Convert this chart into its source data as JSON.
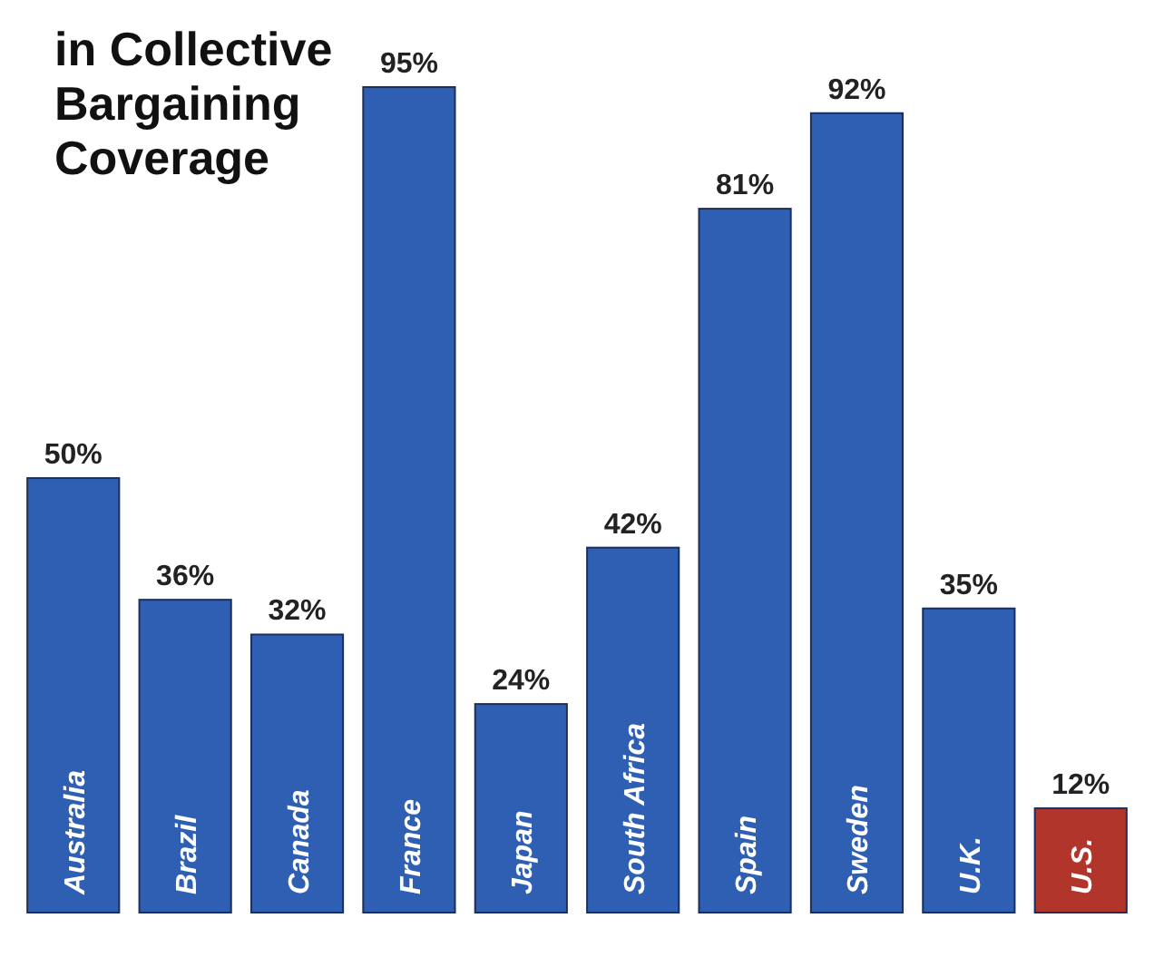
{
  "chart_data": {
    "type": "bar",
    "title": "in Collective Bargaining Coverage",
    "categories": [
      "Australia",
      "Brazil",
      "Canada",
      "France",
      "Japan",
      "South Africa",
      "Spain",
      "Sweden",
      "U.K.",
      "U.S."
    ],
    "values": [
      50,
      36,
      32,
      95,
      24,
      42,
      81,
      92,
      35,
      12
    ],
    "colors": [
      "#2f5fb3",
      "#2f5fb3",
      "#2f5fb3",
      "#2f5fb3",
      "#2f5fb3",
      "#2f5fb3",
      "#2f5fb3",
      "#2f5fb3",
      "#2f5fb3",
      "#b2352c"
    ],
    "value_labels": [
      "50%",
      "36%",
      "32%",
      "95%",
      "24%",
      "42%",
      "81%",
      "92%",
      "35%",
      "12%"
    ]
  }
}
